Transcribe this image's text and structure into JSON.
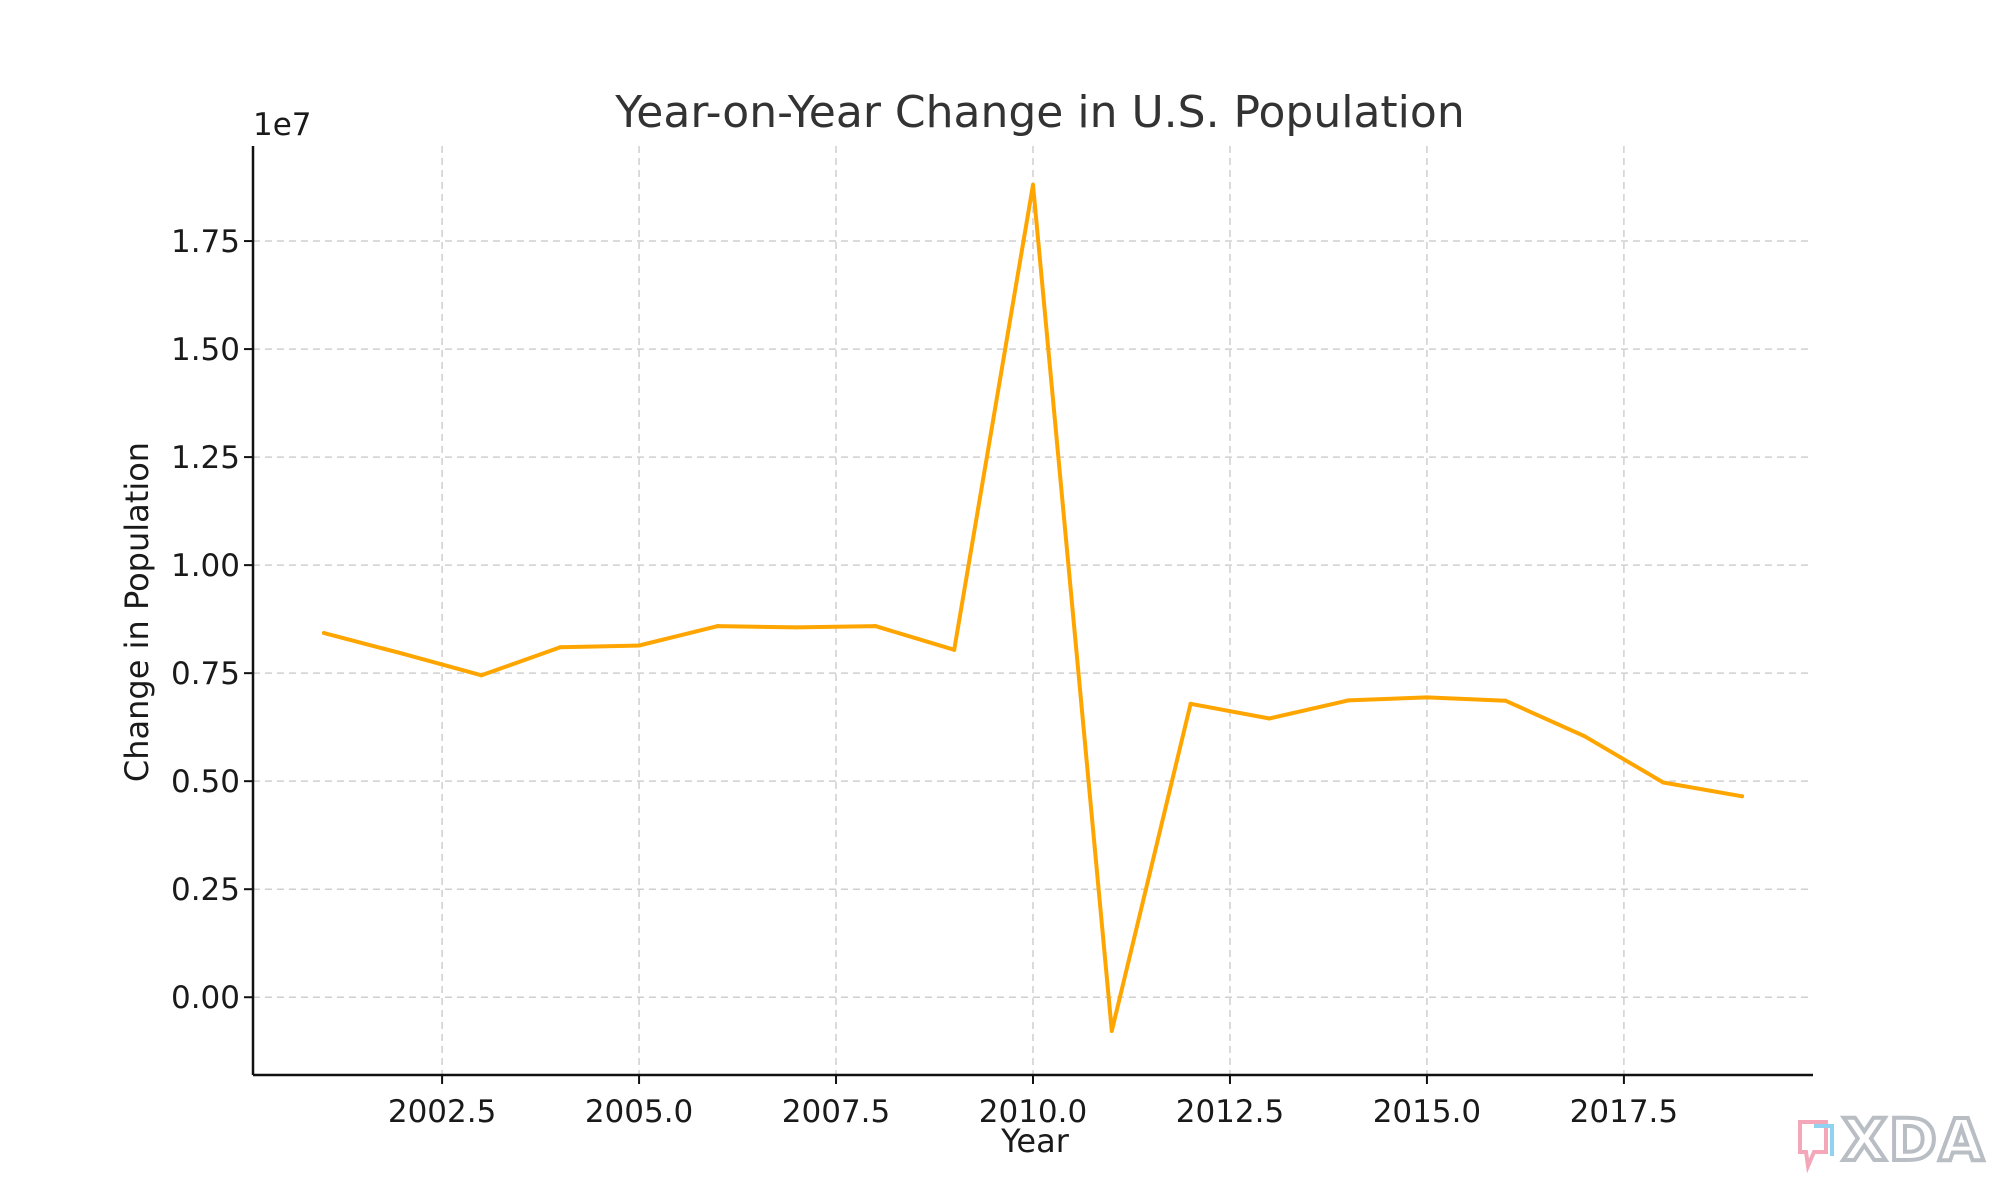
{
  "chart_data": {
    "type": "line",
    "title": "Year-on-Year Change in U.S. Population",
    "xlabel": "Year",
    "ylabel": "Change in Population",
    "y_offset_label": "1e7",
    "xlim": [
      2000.1,
      2019.9
    ],
    "ylim": [
      -0.18,
      1.97
    ],
    "x_ticks": [
      2002.5,
      2005.0,
      2007.5,
      2010.0,
      2012.5,
      2015.0,
      2017.5
    ],
    "x_tick_labels": [
      "2002.5",
      "2005.0",
      "2007.5",
      "2010.0",
      "2012.5",
      "2015.0",
      "2017.5"
    ],
    "y_ticks": [
      0.0,
      0.25,
      0.5,
      0.75,
      1.0,
      1.25,
      1.5,
      1.75
    ],
    "y_tick_labels": [
      "0.00",
      "0.25",
      "0.50",
      "0.75",
      "1.00",
      "1.25",
      "1.50",
      "1.75"
    ],
    "grid": true,
    "legend": "none",
    "series": [
      {
        "color": "#FFA500",
        "x": [
          2001,
          2002,
          2003,
          2004,
          2005,
          2006,
          2007,
          2008,
          2009,
          2010,
          2011,
          2012,
          2013,
          2014,
          2015,
          2016,
          2017,
          2018,
          2019
        ],
        "values": [
          0.843,
          0.795,
          0.745,
          0.81,
          0.814,
          0.859,
          0.856,
          0.859,
          0.804,
          1.88,
          -0.078,
          0.679,
          0.645,
          0.687,
          0.694,
          0.686,
          0.604,
          0.497,
          0.465
        ]
      }
    ]
  },
  "watermark": {
    "text": "XDA",
    "icon": "xda-logo-icon"
  }
}
